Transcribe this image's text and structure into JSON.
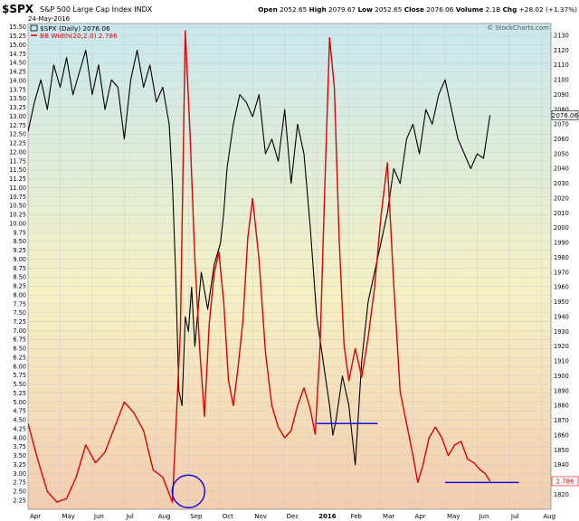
{
  "header": {
    "symbol": "$SPX",
    "name": "S&P 500 Large Cap Index",
    "exchange": "INDX",
    "date": "24-May-2016",
    "open_label": "Open",
    "open": "2052.65",
    "high_label": "High",
    "high": "2079.67",
    "low_label": "Low",
    "low": "2052.65",
    "close_label": "Close",
    "close": "2076.06",
    "volume_label": "Volume",
    "volume": "2.1B",
    "chg_label": "Chg",
    "chg": "+28.02 (+1.37%)",
    "legend_price": "$SPX (Daily) 2076.06",
    "legend_bbw": "BB Width(20,2.0) 2.786",
    "watermark": "© StockCharts.com"
  },
  "colors": {
    "price_line": "#000000",
    "bbw_line": "#e00000",
    "annotation": "#1010e0",
    "bg_top": "#c8e8ee",
    "bg_mid": "#f5f0c4",
    "bg_bottom": "#f4cdb0",
    "grid": "#c8c8c8"
  },
  "chart_data": {
    "type": "line",
    "xlabels": [
      "Apr",
      "May",
      "Jun",
      "Jul",
      "Aug",
      "Sep",
      "Oct",
      "Nov",
      "Dec",
      "2016",
      "Feb",
      "Mar",
      "Apr",
      "May",
      "Jun",
      "Jul",
      "Aug"
    ],
    "x_month_index_range": [
      0,
      16.3
    ],
    "left_axis": {
      "name": "BB Width",
      "ylim": [
        2.0,
        15.6
      ],
      "ticks": [
        "2.25",
        "2.50",
        "2.75",
        "3.00",
        "3.25",
        "3.50",
        "3.75",
        "4.00",
        "4.25",
        "4.50",
        "4.75",
        "5.00",
        "5.25",
        "5.50",
        "5.75",
        "6.00",
        "6.25",
        "6.50",
        "6.75",
        "7.00",
        "7.25",
        "7.50",
        "7.75",
        "8.00",
        "8.25",
        "8.50",
        "8.75",
        "9.00",
        "9.25",
        "9.50",
        "9.75",
        "10.00",
        "10.25",
        "10.50",
        "10.75",
        "11.00",
        "11.25",
        "11.50",
        "11.75",
        "12.00",
        "12.25",
        "12.50",
        "12.75",
        "13.00",
        "13.25",
        "13.50",
        "13.75",
        "14.00",
        "14.25",
        "14.50",
        "14.75",
        "15.00",
        "15.25",
        "15.50"
      ]
    },
    "right_axis": {
      "name": "$SPX",
      "ylim": [
        1810,
        2138
      ],
      "ticks": [
        "1820",
        "1830",
        "1840",
        "1850",
        "1860",
        "1870",
        "1880",
        "1890",
        "1900",
        "1910",
        "1920",
        "1930",
        "1940",
        "1950",
        "1960",
        "1970",
        "1980",
        "1990",
        "2000",
        "2010",
        "2020",
        "2030",
        "2040",
        "2050",
        "2060",
        "2070",
        "2080",
        "2090",
        "2100",
        "2110",
        "2120",
        "2130"
      ],
      "last_value_label": "2076.06"
    },
    "bbw_last_label": "2.786",
    "series": [
      {
        "name": "$SPX (Daily) 2076.06",
        "axis": "right",
        "x": [
          0.0,
          0.2,
          0.4,
          0.6,
          0.8,
          1.0,
          1.2,
          1.4,
          1.6,
          1.8,
          2.0,
          2.2,
          2.4,
          2.6,
          2.8,
          3.0,
          3.2,
          3.4,
          3.6,
          3.8,
          4.0,
          4.2,
          4.4,
          4.5,
          4.6,
          4.7,
          4.8,
          4.9,
          5.0,
          5.1,
          5.2,
          5.4,
          5.6,
          5.8,
          6.0,
          6.1,
          6.2,
          6.4,
          6.6,
          6.8,
          7.0,
          7.2,
          7.4,
          7.6,
          7.8,
          8.0,
          8.2,
          8.4,
          8.6,
          8.8,
          9.0,
          9.2,
          9.4,
          9.5,
          9.6,
          9.8,
          10.0,
          10.2,
          10.4,
          10.6,
          10.8,
          11.0,
          11.2,
          11.4,
          11.6,
          11.8,
          12.0,
          12.2,
          12.4,
          12.6,
          12.8,
          13.0,
          13.2,
          13.4,
          13.6,
          13.8,
          14.0,
          14.2,
          14.4
        ],
        "values": [
          2065,
          2085,
          2100,
          2080,
          2110,
          2095,
          2115,
          2090,
          2105,
          2120,
          2090,
          2110,
          2080,
          2100,
          2095,
          2060,
          2100,
          2120,
          2095,
          2110,
          2085,
          2095,
          2070,
          2030,
          1970,
          1890,
          1880,
          1940,
          1930,
          1960,
          1920,
          1970,
          1945,
          1975,
          1990,
          2010,
          2040,
          2070,
          2090,
          2085,
          2075,
          2090,
          2050,
          2060,
          2045,
          2080,
          2030,
          2070,
          2050,
          2000,
          1940,
          1910,
          1880,
          1860,
          1870,
          1900,
          1880,
          1840,
          1910,
          1950,
          1970,
          1990,
          2010,
          2040,
          2030,
          2060,
          2070,
          2050,
          2080,
          2070,
          2090,
          2100,
          2080,
          2060,
          2050,
          2040,
          2050,
          2047,
          2076.06
        ]
      },
      {
        "name": "BB Width(20,2.0) 2.786",
        "axis": "left",
        "x": [
          0.0,
          0.3,
          0.6,
          0.9,
          1.2,
          1.5,
          1.8,
          2.1,
          2.4,
          2.7,
          3.0,
          3.3,
          3.6,
          3.9,
          4.2,
          4.5,
          4.75,
          4.9,
          5.05,
          5.2,
          5.35,
          5.5,
          5.65,
          5.8,
          5.95,
          6.1,
          6.25,
          6.4,
          6.55,
          6.7,
          6.85,
          7.0,
          7.2,
          7.4,
          7.6,
          7.8,
          8.0,
          8.2,
          8.4,
          8.6,
          8.8,
          8.95,
          9.1,
          9.25,
          9.4,
          9.55,
          9.7,
          9.85,
          10.0,
          10.2,
          10.4,
          10.6,
          10.8,
          11.0,
          11.2,
          11.4,
          11.6,
          11.8,
          12.0,
          12.15,
          12.3,
          12.5,
          12.7,
          12.9,
          13.1,
          13.3,
          13.5,
          13.7,
          13.9,
          14.1,
          14.25,
          14.4
        ],
        "values": [
          4.4,
          3.4,
          2.5,
          2.2,
          2.3,
          2.9,
          3.8,
          3.3,
          3.6,
          4.3,
          5.0,
          4.7,
          4.2,
          3.1,
          2.9,
          2.2,
          7.0,
          15.4,
          12.5,
          9.0,
          6.5,
          4.6,
          7.2,
          8.6,
          9.2,
          7.8,
          5.6,
          4.9,
          6.0,
          7.3,
          9.6,
          10.7,
          9.0,
          6.4,
          4.9,
          4.3,
          4.0,
          4.2,
          4.9,
          5.4,
          4.8,
          4.1,
          6.5,
          11.0,
          15.2,
          13.8,
          9.5,
          6.6,
          5.6,
          6.5,
          5.7,
          6.8,
          8.2,
          10.2,
          11.7,
          8.3,
          5.3,
          4.4,
          3.5,
          2.75,
          3.2,
          4.0,
          4.3,
          4.0,
          3.5,
          3.8,
          3.9,
          3.4,
          3.3,
          3.1,
          3.0,
          2.786
        ]
      }
    ],
    "annotations": [
      {
        "type": "circle",
        "x": 5.0,
        "y": 2.5,
        "label": ""
      },
      {
        "type": "hline",
        "x_from": 9.0,
        "x_to": 10.9,
        "y": 4.4,
        "label": ""
      },
      {
        "type": "hline",
        "x_from": 13.0,
        "x_to": 15.3,
        "y": 2.75,
        "label": ""
      }
    ],
    "grid": true,
    "legend": "top-left"
  }
}
